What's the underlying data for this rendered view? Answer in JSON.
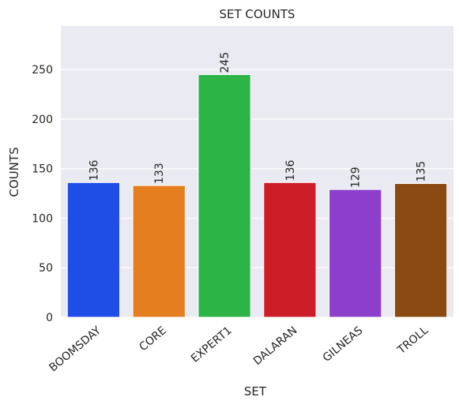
{
  "chart_data": {
    "type": "bar",
    "title": "SET COUNTS",
    "xlabel": "SET",
    "ylabel": "COUNTS",
    "categories": [
      "BOOMSDAY",
      "CORE",
      "EXPERT1",
      "DALARAN",
      "GILNEAS",
      "TROLL"
    ],
    "values": [
      136,
      133,
      245,
      136,
      129,
      135
    ],
    "colors": [
      "#1f4ee6",
      "#e57e1f",
      "#2db446",
      "#cd1e27",
      "#8b3fcc",
      "#8a4a12"
    ],
    "ylim": [
      0,
      294
    ],
    "yticks": [
      0,
      50,
      100,
      150,
      200,
      250
    ],
    "grid": true,
    "background": "#eaeaf2"
  }
}
